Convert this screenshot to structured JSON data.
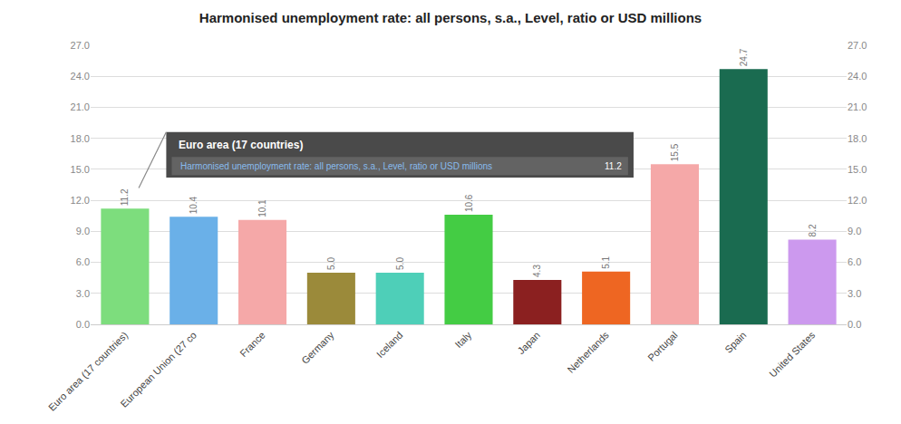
{
  "chart_data": {
    "type": "bar",
    "title": "Harmonised unemployment rate: all persons, s.a., Level, ratio or USD millions",
    "categories": [
      "Euro area (17 countries)",
      "European Union (27 co",
      "France",
      "Germany",
      "Iceland",
      "Italy",
      "Japan",
      "Netherlands",
      "Portugal",
      "Spain",
      "United States"
    ],
    "values": [
      11.2,
      10.4,
      10.1,
      5.0,
      5.0,
      10.6,
      4.3,
      5.1,
      15.5,
      24.7,
      8.2
    ],
    "value_labels": [
      "11.2",
      "10.4",
      "10.1",
      "5.0",
      "5.0",
      "10.6",
      "4.3",
      "5.1",
      "15.5",
      "24.7",
      "8.2"
    ],
    "data_labels": true,
    "colors": [
      "#7ddd7d",
      "#6ab0e8",
      "#f5a8a8",
      "#9b8a3a",
      "#4ecfb8",
      "#44cc44",
      "#8b2020",
      "#ee6622",
      "#f5a8a8",
      "#1a6b50",
      "#cc99ee"
    ],
    "ylim": [
      0,
      27
    ],
    "yticks": [
      {
        "value": 0,
        "label": "0.0"
      },
      {
        "value": 3,
        "label": "3.0"
      },
      {
        "value": 6,
        "label": "6.0"
      },
      {
        "value": 9,
        "label": "9.0"
      },
      {
        "value": 12,
        "label": "12.0"
      },
      {
        "value": 15,
        "label": "15.0"
      },
      {
        "value": 18,
        "label": "18.0"
      },
      {
        "value": 21,
        "label": "21.0"
      },
      {
        "value": 24,
        "label": "24.0"
      },
      {
        "value": 27,
        "label": "27.0"
      }
    ],
    "y2lim": [
      0,
      27
    ],
    "y2ticks": [
      {
        "value": 0,
        "label": "0.0"
      },
      {
        "value": 3,
        "label": "3.0"
      },
      {
        "value": 6,
        "label": "6.0"
      },
      {
        "value": 9,
        "label": "9.0"
      },
      {
        "value": 12,
        "label": "12.0"
      },
      {
        "value": 15,
        "label": "15.0"
      },
      {
        "value": 18,
        "label": "18.0"
      },
      {
        "value": 21,
        "label": "21.0"
      },
      {
        "value": 24,
        "label": "24.0"
      },
      {
        "value": 27,
        "label": "27.0"
      }
    ],
    "grid": true,
    "annotations": [
      "Euro area (17 countries)",
      "Harmonised unemployment rate: all persons, s.a., Level, ratio or USD millions",
      "11.2"
    ]
  }
}
